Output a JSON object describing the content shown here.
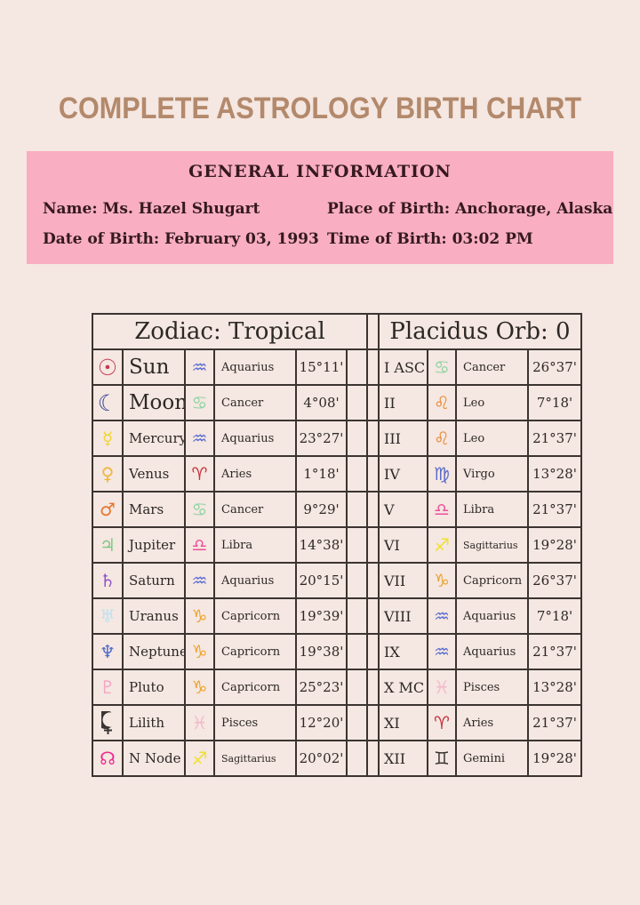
{
  "page": {
    "background": "#f5e7e1",
    "accent_pink": "#f9aec2",
    "title_color": "#b3896c",
    "border_color": "#3b3430"
  },
  "title": "COMPLETE ASTROLOGY BIRTH CHART",
  "general_info": {
    "heading": "GENERAL INFORMATION",
    "left_column": [
      "Name: Ms. Hazel Shugart",
      "Date of Birth: February 03, 1993"
    ],
    "right_column": [
      "Place of Birth: Anchorage, Alaska",
      "Time of Birth: 03:02 PM"
    ]
  },
  "table": {
    "left_header": "Zodiac: Tropical",
    "right_header": "Placidus Orb: 0",
    "rows": [
      {
        "planet_icon": "sun",
        "planet_glyph": "☉",
        "planet_color": "#c23b52",
        "planet": "Sun",
        "sign_glyph": "♒",
        "sign_color": "#5b6ed3",
        "sign": "Aquarius",
        "degree": "15°11'",
        "house": "I ASC",
        "house_sign_glyph": "♋",
        "house_sign_color": "#8fd4a4",
        "house_sign": "Cancer",
        "house_degree": "26°37'"
      },
      {
        "planet_icon": "moon",
        "planet_glyph": "☾",
        "planet_color": "#2f3f8e",
        "planet": "Moon",
        "sign_glyph": "♋",
        "sign_color": "#8fd4a4",
        "sign": "Cancer",
        "degree": "4°08'",
        "house": "II",
        "house_sign_glyph": "♌",
        "house_sign_color": "#e8872f",
        "house_sign": "Leo",
        "house_degree": "7°18'"
      },
      {
        "planet_icon": "mercury",
        "planet_glyph": "☿",
        "planet_color": "#f0d52d",
        "planet": "Mercury",
        "sign_glyph": "♒",
        "sign_color": "#5b6ed3",
        "sign": "Aquarius",
        "degree": "23°27'",
        "house": "III",
        "house_sign_glyph": "♌",
        "house_sign_color": "#e8872f",
        "house_sign": "Leo",
        "house_degree": "21°37'"
      },
      {
        "planet_icon": "venus",
        "planet_glyph": "♀",
        "planet_color": "#edb83f",
        "planet": "Venus",
        "sign_glyph": "♈",
        "sign_color": "#c8333f",
        "sign": "Aries",
        "degree": "1°18'",
        "house": "IV",
        "house_sign_glyph": "♍",
        "house_sign_color": "#5a6bc8",
        "house_sign": "Virgo",
        "house_degree": "13°28'"
      },
      {
        "planet_icon": "mars",
        "planet_glyph": "♂",
        "planet_color": "#e5762e",
        "planet": "Mars",
        "sign_glyph": "♋",
        "sign_color": "#8fd4a4",
        "sign": "Cancer",
        "degree": "9°29'",
        "house": "V",
        "house_sign_glyph": "♎",
        "house_sign_color": "#ef4f9a",
        "house_sign": "Libra",
        "house_degree": "21°37'"
      },
      {
        "planet_icon": "jupiter",
        "planet_glyph": "♃",
        "planet_color": "#7ec983",
        "planet": "Jupiter",
        "sign_glyph": "♎",
        "sign_color": "#ef4f9a",
        "sign": "Libra",
        "degree": "14°38'",
        "house": "VI",
        "house_sign_glyph": "♐",
        "house_sign_color": "#f0e030",
        "house_sign": "Sagittarius",
        "house_degree": "19°28'"
      },
      {
        "planet_icon": "saturn",
        "planet_glyph": "♄",
        "planet_color": "#9050c8",
        "planet": "Saturn",
        "sign_glyph": "♒",
        "sign_color": "#5b6ed3",
        "sign": "Aquarius",
        "degree": "20°15'",
        "house": "VII",
        "house_sign_glyph": "♑",
        "house_sign_color": "#eca42f",
        "house_sign": "Capricorn",
        "house_degree": "26°37'"
      },
      {
        "planet_icon": "uranus",
        "planet_glyph": "♅",
        "planet_color": "#bfe2f2",
        "planet": "Uranus",
        "sign_glyph": "♑",
        "sign_color": "#eca42f",
        "sign": "Capricorn",
        "degree": "19°39'",
        "house": "VIII",
        "house_sign_glyph": "♒",
        "house_sign_color": "#5b6ed3",
        "house_sign": "Aquarius",
        "house_degree": "7°18'"
      },
      {
        "planet_icon": "neptune",
        "planet_glyph": "♆",
        "planet_color": "#4f69cb",
        "planet": "Neptune",
        "sign_glyph": "♑",
        "sign_color": "#eca42f",
        "sign": "Capricorn",
        "degree": "19°38'",
        "house": "IX",
        "house_sign_glyph": "♒",
        "house_sign_color": "#5b6ed3",
        "house_sign": "Aquarius",
        "house_degree": "21°37'"
      },
      {
        "planet_icon": "pluto",
        "planet_glyph": "♇",
        "planet_color": "#f2a6c4",
        "planet": "Pluto",
        "sign_glyph": "♑",
        "sign_color": "#eca42f",
        "sign": "Capricorn",
        "degree": "25°23'",
        "house": "X MC",
        "house_sign_glyph": "♓",
        "house_sign_color": "#f2b9cb",
        "house_sign": "Pisces",
        "house_degree": "13°28'"
      },
      {
        "planet_icon": "lilith",
        "planet_glyph": "⚸",
        "planet_color": "#3a3532",
        "planet": "Lilith",
        "sign_glyph": "♓",
        "sign_color": "#f2b9cb",
        "sign": "Pisces",
        "degree": "12°20'",
        "house": "XI",
        "house_sign_glyph": "♈",
        "house_sign_color": "#c8333f",
        "house_sign": "Aries",
        "house_degree": "21°37'"
      },
      {
        "planet_icon": "n-node",
        "planet_glyph": "☊",
        "planet_color": "#ea2b92",
        "planet": "N Node",
        "sign_glyph": "♐",
        "sign_color": "#f0e030",
        "sign": "Sagittarius",
        "degree": "20°02'",
        "house": "XII",
        "house_sign_glyph": "♊",
        "house_sign_color": "#3a3532",
        "house_sign": "Gemini",
        "house_degree": "19°28'"
      }
    ]
  }
}
